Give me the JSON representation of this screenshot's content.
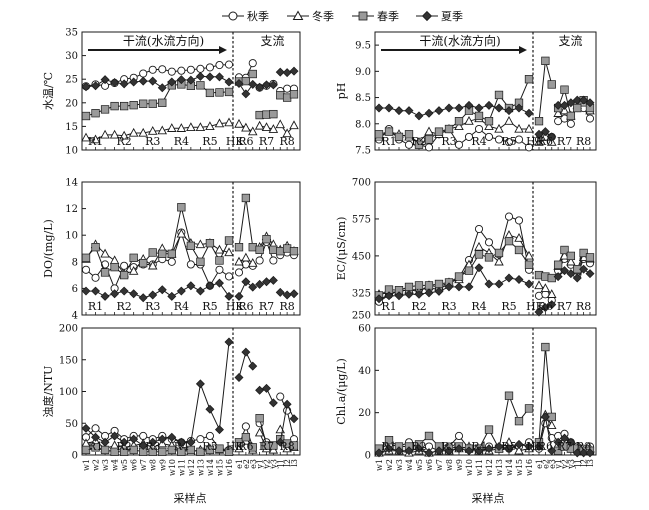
{
  "legend": {
    "labels": [
      "秋季",
      "冬季",
      "春季",
      "夏季"
    ],
    "markers": [
      "circle-open",
      "triangle-open",
      "square-gray",
      "diamond-dark"
    ]
  },
  "colors": {
    "line": "#1a1a1a",
    "gray_fill": "#9a9a9a",
    "dark_fill": "#333333",
    "open_fill": "#ffffff"
  },
  "annotations": {
    "mainstream": "干流(水流方向)",
    "tributary": "支流"
  },
  "xlabel": "采样点",
  "site_groups_main": [
    "R1",
    "R2",
    "R3",
    "R4",
    "R5",
    "HK"
  ],
  "site_groups_trib": [
    "R6",
    "R7",
    "R8"
  ],
  "x_main": [
    "w1",
    "w2",
    "w3",
    "w4",
    "w5",
    "w6",
    "w7",
    "w8",
    "w9",
    "w10",
    "w11",
    "w12",
    "w13",
    "w14",
    "w15",
    "w16"
  ],
  "x_trib": [
    "e1",
    "e2",
    "e3",
    "y1",
    "y2",
    "y3",
    "l1",
    "l2",
    "l3"
  ],
  "chart_data": [
    {
      "type": "line",
      "ylabel": "水温/℃",
      "ylim": [
        10,
        35
      ],
      "yticks": [
        "10",
        "15",
        "20",
        "25",
        "30",
        "35"
      ],
      "series_main": [
        {
          "name": "秋季",
          "values": [
            23.5,
            23.9,
            23.6,
            24.2,
            25,
            25.3,
            26.2,
            27,
            27.1,
            26.6,
            26.8,
            27,
            27.2,
            27.5,
            28,
            28.1
          ]
        },
        {
          "name": "冬季",
          "values": [
            12.6,
            12.2,
            13.2,
            13.2,
            13,
            13.6,
            13.6,
            14,
            14.1,
            14.6,
            14.6,
            14.8,
            14.8,
            15,
            15.6,
            15.8
          ]
        },
        {
          "name": "春季",
          "values": [
            17.2,
            17.8,
            18.6,
            19.3,
            19.3,
            19.5,
            19.8,
            19.8,
            20,
            23.7,
            23.9,
            23.6,
            23.7,
            22.1,
            22.2,
            22.3
          ]
        },
        {
          "name": "夏季",
          "values": [
            23.4,
            23.6,
            24.9,
            24.3,
            24,
            24.4,
            24.6,
            24.6,
            23.2,
            24.4,
            24.9,
            24.8,
            25.6,
            25.5,
            25.5,
            24.4
          ]
        }
      ],
      "series_trib": [
        {
          "name": "秋季",
          "values": [
            25.4,
            25.3,
            28.4,
            23.2,
            23.6,
            24,
            22.5,
            23,
            23
          ]
        },
        {
          "name": "冬季",
          "values": [
            15.5,
            14.7,
            13.9,
            15.1,
            14.8,
            14.4,
            15.4,
            13.5,
            15.2
          ]
        },
        {
          "name": "春季",
          "values": [
            24.5,
            24.6,
            26.1,
            17.4,
            17.5,
            17.6,
            21.6,
            21.1,
            21.8
          ]
        },
        {
          "name": "夏季",
          "values": [
            24.1,
            21.9,
            23.9,
            23.3,
            23.8,
            23.8,
            26.5,
            26.4,
            26.7
          ]
        }
      ]
    },
    {
      "type": "line",
      "ylabel": "pH",
      "ylim": [
        7.5,
        9.75
      ],
      "yticks": [
        "7.5",
        "8.0",
        "8.5",
        "9.0",
        "9.5"
      ],
      "series_main": [
        {
          "name": "秋季",
          "values": [
            7.7,
            7.9,
            7.7,
            7.6,
            7.6,
            7.55,
            7.8,
            7.9,
            7.6,
            7.75,
            7.9,
            7.75,
            7.7,
            7.65,
            7.7,
            7.55
          ]
        },
        {
          "name": "冬季",
          "values": [
            7.75,
            7.85,
            7.8,
            7.75,
            7.65,
            7.85,
            7.8,
            7.9,
            7.95,
            8.05,
            8.1,
            7.95,
            7.9,
            8.05,
            7.9,
            7.9
          ]
        },
        {
          "name": "春季",
          "values": [
            7.8,
            7.85,
            7.75,
            7.8,
            7.6,
            7.7,
            7.85,
            7.9,
            8.05,
            8.25,
            8.15,
            8.05,
            8.55,
            8.3,
            8.4,
            8.85
          ]
        },
        {
          "name": "夏季",
          "values": [
            8.3,
            8.3,
            8.25,
            8.25,
            8.15,
            8.2,
            8.25,
            8.3,
            8.3,
            8.35,
            8.3,
            8.35,
            8.3,
            8.25,
            8.3,
            8.2
          ]
        }
      ],
      "series_trib": [
        {
          "name": "秋季",
          "values": [
            7.7,
            7.75,
            7.75,
            8.05,
            8.1,
            8.0,
            8.3,
            8.3,
            8.1
          ]
        },
        {
          "name": "冬季",
          "values": [
            7.65,
            7.75,
            7.65,
            8.2,
            8.25,
            8.15,
            8.35,
            8.4,
            8.25
          ]
        },
        {
          "name": "春季",
          "values": [
            8.05,
            9.2,
            8.75,
            8.3,
            8.65,
            8.15,
            8.3,
            8.45,
            8.3
          ]
        },
        {
          "name": "夏季",
          "values": [
            7.8,
            7.85,
            7.75,
            8.35,
            8.35,
            8.4,
            8.45,
            8.45,
            8.4
          ]
        }
      ]
    },
    {
      "type": "line",
      "ylabel": "DO/(mg/L)",
      "ylim": [
        4,
        14
      ],
      "yticks": [
        "4",
        "6",
        "8",
        "10",
        "12",
        "14"
      ],
      "series_main": [
        {
          "name": "秋季",
          "values": [
            7.4,
            6.8,
            7.8,
            6.0,
            7.7,
            7.6,
            7.8,
            7.8,
            8.2,
            8.0,
            10.2,
            7.8,
            7.8,
            6.2,
            7.4,
            6.9
          ]
        },
        {
          "name": "冬季",
          "values": [
            8.2,
            9.3,
            8.6,
            8.1,
            7.1,
            7.3,
            8.2,
            7.7,
            9.0,
            8.6,
            10.1,
            9.4,
            9.3,
            9.4,
            8.9,
            8.7
          ]
        },
        {
          "name": "春季",
          "values": [
            8.3,
            9.1,
            7.2,
            7.6,
            7.0,
            8.3,
            7.9,
            8.7,
            8.6,
            8.6,
            12.1,
            9.2,
            8.0,
            9.4,
            8.1,
            9.6
          ]
        },
        {
          "name": "夏季",
          "values": [
            5.8,
            5.8,
            5.4,
            5.6,
            5.8,
            5.6,
            5.3,
            5.5,
            5.9,
            5.4,
            5.8,
            6.2,
            5.8,
            6.2,
            6.4,
            5.4
          ]
        }
      ],
      "series_trib": [
        {
          "name": "秋季",
          "values": [
            7.2,
            7.8,
            7.7,
            8.1,
            9.5,
            8.1,
            8.5,
            8.7,
            8.5
          ]
        },
        {
          "name": "冬季",
          "values": [
            8.0,
            8.3,
            7.9,
            9.1,
            9.9,
            9.3,
            8.9,
            9.2,
            8.8
          ]
        },
        {
          "name": "春季",
          "values": [
            9.1,
            12.8,
            9.1,
            8.9,
            9.7,
            8.9,
            8.8,
            9.0,
            8.8
          ]
        },
        {
          "name": "夏季",
          "values": [
            5.4,
            6.5,
            6.1,
            6.3,
            6.5,
            6.6,
            5.7,
            5.5,
            5.6
          ]
        }
      ]
    },
    {
      "type": "line",
      "ylabel": "EC/(μS/cm)",
      "ylim": [
        250,
        700
      ],
      "yticks": [
        "250",
        "325",
        "450",
        "575",
        "700"
      ],
      "series_main": [
        {
          "name": "秋季",
          "values": [
            295,
            318,
            332,
            335,
            336,
            340,
            338,
            356,
            376,
            436,
            541,
            496,
            455,
            583,
            570,
            403
          ]
        },
        {
          "name": "冬季",
          "values": [
            320,
            325,
            330,
            335,
            330,
            350,
            345,
            360,
            370,
            420,
            480,
            460,
            430,
            520,
            510,
            450
          ]
        },
        {
          "name": "春季",
          "values": [
            316,
            336,
            334,
            345,
            350,
            350,
            355,
            360,
            380,
            400,
            455,
            445,
            460,
            500,
            470,
            420
          ]
        },
        {
          "name": "夏季",
          "values": [
            305,
            315,
            315,
            320,
            320,
            325,
            330,
            345,
            345,
            345,
            410,
            355,
            355,
            375,
            370,
            355
          ]
        }
      ],
      "series_trib": [
        {
          "name": "秋季",
          "values": [
            315,
            320,
            300,
            400,
            440,
            420,
            385,
            440,
            425
          ]
        },
        {
          "name": "冬季",
          "values": [
            350,
            340,
            320,
            415,
            450,
            430,
            400,
            445,
            440
          ]
        },
        {
          "name": "春季",
          "values": [
            385,
            380,
            375,
            420,
            470,
            450,
            405,
            460,
            445
          ]
        },
        {
          "name": "夏季",
          "values": [
            260,
            275,
            285,
            380,
            400,
            390,
            375,
            405,
            390
          ]
        }
      ]
    },
    {
      "type": "line",
      "ylabel": "浊度/NTU",
      "ylim": [
        0,
        200
      ],
      "yticks": [
        "0",
        "50",
        "100",
        "150",
        "200"
      ],
      "series_main": [
        {
          "name": "秋季",
          "values": [
            28,
            42,
            30,
            38,
            25,
            30,
            30,
            25,
            30,
            25,
            20,
            22,
            25,
            30,
            10,
            8
          ]
        },
        {
          "name": "冬季",
          "values": [
            18,
            22,
            10,
            15,
            12,
            15,
            18,
            12,
            18,
            15,
            8,
            5,
            8,
            10,
            8,
            5
          ]
        },
        {
          "name": "春季",
          "values": [
            8,
            12,
            8,
            5,
            5,
            8,
            5,
            5,
            5,
            8,
            5,
            8,
            5,
            8,
            10,
            5
          ]
        },
        {
          "name": "夏季",
          "values": [
            42,
            28,
            20,
            30,
            20,
            25,
            15,
            20,
            25,
            28,
            20,
            20,
            112,
            72,
            40,
            178
          ]
        }
      ],
      "series_trib": [
        {
          "name": "秋季",
          "values": [
            15,
            45,
            12,
            50,
            20,
            12,
            92,
            70,
            25
          ]
        },
        {
          "name": "冬季",
          "values": [
            10,
            22,
            8,
            35,
            10,
            8,
            40,
            10,
            12
          ]
        },
        {
          "name": "春季",
          "values": [
            20,
            28,
            12,
            58,
            15,
            15,
            25,
            18,
            15
          ]
        },
        {
          "name": "夏季",
          "values": [
            122,
            162,
            140,
            102,
            105,
            82,
            20,
            80,
            57
          ]
        }
      ]
    },
    {
      "type": "line",
      "ylabel": "Chl.a/(μg/L)",
      "ylim": [
        0,
        60
      ],
      "yticks": [
        "0",
        "20",
        "40",
        "60"
      ],
      "series_main": [
        {
          "name": "秋季",
          "values": [
            3,
            5,
            4,
            6,
            3,
            4,
            2,
            4,
            9,
            3,
            3,
            4,
            3,
            3,
            4,
            6
          ]
        },
        {
          "name": "冬季",
          "values": [
            1,
            2,
            2,
            1,
            2,
            1,
            2,
            2,
            3,
            4,
            2,
            2,
            3,
            6,
            2,
            3
          ]
        },
        {
          "name": "春季",
          "values": [
            3,
            7,
            4,
            4,
            5,
            9,
            4,
            3,
            4,
            3,
            3,
            12,
            3,
            28,
            16,
            22
          ]
        },
        {
          "name": "夏季",
          "values": [
            1,
            3,
            2,
            2,
            3,
            1,
            2,
            2,
            3,
            2,
            2,
            3,
            4,
            3,
            5,
            4
          ]
        }
      ],
      "series_trib": [
        {
          "name": "秋季",
          "values": [
            3,
            15,
            8,
            9,
            10,
            6,
            4,
            3,
            4
          ]
        },
        {
          "name": "冬季",
          "values": [
            4,
            19,
            14,
            5,
            7,
            5,
            3,
            2,
            3
          ]
        },
        {
          "name": "春季",
          "values": [
            6,
            51,
            18,
            2,
            4,
            3,
            3,
            2,
            2
          ]
        },
        {
          "name": "夏季",
          "values": [
            4,
            18,
            2,
            6,
            8,
            6,
            1,
            1,
            1
          ]
        }
      ]
    }
  ]
}
